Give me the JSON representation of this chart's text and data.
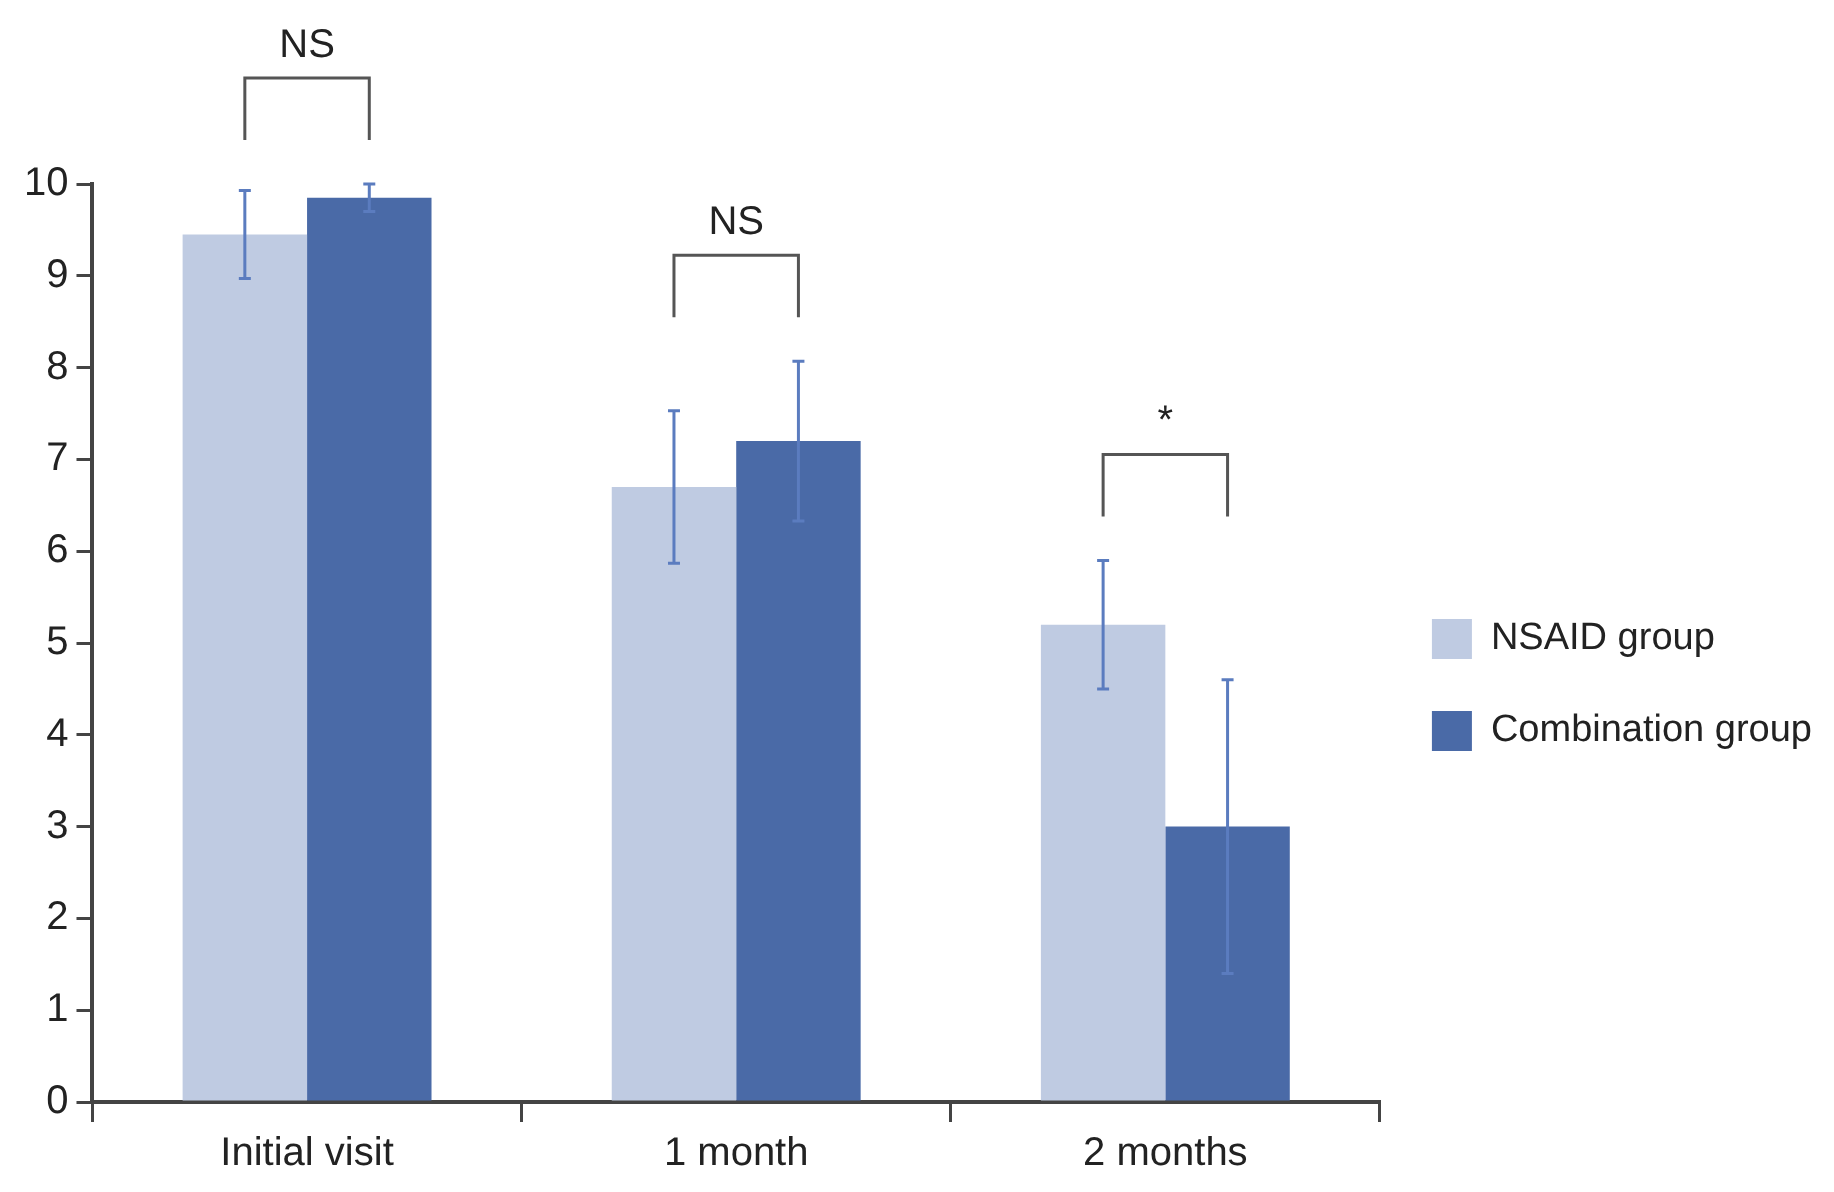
{
  "chart_data": {
    "type": "bar",
    "categories": [
      "Initial visit",
      "1 month",
      "2 months"
    ],
    "series": [
      {
        "name": "NSAID group",
        "color": "#bfcbe2",
        "values": [
          9.45,
          6.7,
          5.2
        ],
        "errors": [
          0.48,
          0.83,
          0.7
        ]
      },
      {
        "name": "Combination group",
        "color": "#4a6aa7",
        "values": [
          9.85,
          7.2,
          3.0
        ],
        "errors": [
          0.15,
          0.87,
          1.6
        ]
      }
    ],
    "ylim": [
      0,
      10
    ],
    "yticks": [
      0,
      1,
      2,
      3,
      4,
      5,
      6,
      7,
      8,
      9,
      10
    ],
    "grid": false,
    "legend": "right",
    "annotations": [
      "NS",
      "NS",
      "*"
    ]
  }
}
